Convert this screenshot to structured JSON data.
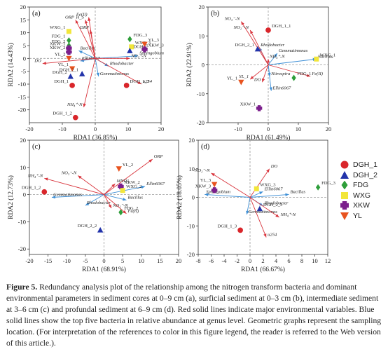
{
  "colors": {
    "env_arrow": "#d9363e",
    "species_arrow": "#3d8fd6",
    "dashed": "#9a9a9a",
    "DGH_1": "#d9262b",
    "DGH_2": "#2233aa",
    "FDG": "#2e9e3a",
    "WXG": "#f2e63a",
    "XKW": "#7b1f8c",
    "YL": "#e8531f"
  },
  "legend": [
    {
      "name": "DGH_1",
      "marker": "circle"
    },
    {
      "name": "DGH_2",
      "marker": "triangle-up"
    },
    {
      "name": "FDG",
      "marker": "diamond"
    },
    {
      "name": "WXG",
      "marker": "square"
    },
    {
      "name": "XKW",
      "marker": "plus"
    },
    {
      "name": "YL",
      "marker": "triangle-down"
    }
  ],
  "caption": {
    "figure_label": "Figure 5.",
    "text": " Redundancy analysis plot of the relationship among the nitrogen transform bacteria and dominant environmental parameters in sediment cores at 0–9 cm (a), surficial sediment at 0–3 cm (b), intermediate sediment at 3–6 cm (c) and profundal sediment at 6–9 cm (d). Red solid lines indicate major environmental variables. Blue solid lines show the top five bacteria in relative abundance at genus level. Geometric graphs represent the sampling location. (For interpretation of the references to color in this figure legend, the reader is referred to the Web version of this article.)."
  },
  "chart_data": [
    {
      "panel": "(a)",
      "type": "scatter",
      "xlabel": "RDA1 (36.85%)",
      "ylabel": "RDA2 (14.43%)",
      "xlim": [
        -20,
        20
      ],
      "ylim": [
        -25,
        20
      ],
      "xticks": [
        -20,
        -10,
        0,
        10,
        20
      ],
      "yticks": [
        -20,
        -15,
        -10,
        -5,
        0,
        5,
        10,
        15,
        20
      ],
      "env_vectors": [
        {
          "label": "ORP",
          "x": -6,
          "y": 15
        },
        {
          "label": "H_S",
          "x": -3,
          "y": 15
        },
        {
          "label": "Fe(II)",
          "x": -2,
          "y": 16
        },
        {
          "label": "DRP",
          "x": -1.5,
          "y": 11
        },
        {
          "label": "DO",
          "x": -16,
          "y": -2
        },
        {
          "label": "NO₂⁻-N",
          "x": 10.5,
          "y": 0
        },
        {
          "label": "u254",
          "x": 14,
          "y": -10
        },
        {
          "label": "NH₄⁺-N",
          "x": -3.5,
          "y": -19
        }
      ],
      "species_vectors": [
        {
          "label": "Bacillus",
          "x": -5,
          "y": 3
        },
        {
          "label": "Ellin6067",
          "x": -4.5,
          "y": -1
        },
        {
          "label": "Sphingobium",
          "x": 13,
          "y": 1
        },
        {
          "label": "Rhodobacter",
          "x": 4,
          "y": -3
        },
        {
          "label": "Gemmatimonas",
          "x": 1,
          "y": -7
        }
      ],
      "samples": [
        {
          "label": "WXG_1",
          "group": "WXG",
          "x": -8,
          "y": 10.5
        },
        {
          "label": "FDG_1",
          "group": "FDG",
          "x": -8,
          "y": 7
        },
        {
          "label": "FDG_2",
          "group": "FDG",
          "x": -8,
          "y": 5
        },
        {
          "label": "XKW_1",
          "group": "XKW",
          "x": -8,
          "y": 4
        },
        {
          "label": "XKW_2",
          "group": "XKW",
          "x": -8,
          "y": 2.5
        },
        {
          "label": "YL_1",
          "group": "YL",
          "x": -7,
          "y": -4
        },
        {
          "label": "YL_2",
          "group": "YL",
          "x": -8,
          "y": 0
        },
        {
          "label": "DGH_2",
          "group": "DGH_2",
          "x": -7.5,
          "y": -7
        },
        {
          "label": "DGH_1",
          "group": "DGH_1",
          "x": -7,
          "y": -10.5
        },
        {
          "label": "DGH_2_1",
          "group": "DGH_2",
          "x": -4,
          "y": -6
        },
        {
          "label": "FDG_3",
          "group": "FDG",
          "x": 10.5,
          "y": 7.5
        },
        {
          "label": "WXG_3",
          "group": "WXG",
          "x": 11,
          "y": 4.5
        },
        {
          "label": "DGH_2",
          "group": "DGH_2",
          "x": 10.5,
          "y": 3
        },
        {
          "label": "YL_3",
          "group": "YL",
          "x": 15,
          "y": 5.5
        },
        {
          "label": "XKW_3",
          "group": "XKW",
          "x": 15,
          "y": 3.5
        },
        {
          "label": "DGH_1_3",
          "group": "DGH_1",
          "x": 9.5,
          "y": -10.5
        },
        {
          "label": "DGH_1_2",
          "group": "DGH_1",
          "x": -6,
          "y": -23
        }
      ]
    },
    {
      "panel": "(b)",
      "type": "scatter",
      "xlabel": "RDA1 (61.49%)",
      "ylabel": "RDA2 (22.91%)",
      "xlim": [
        -20,
        20
      ],
      "ylim": [
        -20,
        20
      ],
      "xticks": [
        -10,
        0,
        10,
        20
      ],
      "yticks": [
        -20,
        -10,
        0,
        10,
        20
      ],
      "env_vectors": [
        {
          "label": "NO₃⁻-N",
          "x": -9,
          "y": 15
        },
        {
          "label": "NO₂⁻-N",
          "x": -6,
          "y": 12
        },
        {
          "label": "NH₄⁺-N",
          "x": 0,
          "y": 2
        },
        {
          "label": "YL_1",
          "x": -6,
          "y": -5
        },
        {
          "label": "DO",
          "x": -2,
          "y": -6
        },
        {
          "label": "Fe(II)",
          "x": 14,
          "y": -4
        }
      ],
      "species_vectors": [
        {
          "label": "Rhodobacter",
          "x": -3,
          "y": 6
        },
        {
          "label": "Gemmatimonas",
          "x": 3,
          "y": 4
        },
        {
          "label": "Bacillus",
          "x": 16,
          "y": 2
        },
        {
          "label": "Nitrospira",
          "x": 0.5,
          "y": -4
        },
        {
          "label": "Ellin6067",
          "x": 1,
          "y": -9
        }
      ],
      "samples": [
        {
          "label": "DGH_1_1",
          "group": "DGH_1",
          "x": 0,
          "y": 12
        },
        {
          "label": "DGH_2_1",
          "group": "DGH_2",
          "x": -3.5,
          "y": 5.5
        },
        {
          "label": "YL_1",
          "group": "YL",
          "x": -9,
          "y": -6
        },
        {
          "label": "WXG_1",
          "group": "WXG",
          "x": 16,
          "y": 2
        },
        {
          "label": "FDG_1",
          "group": "FDG",
          "x": 8.5,
          "y": -4.5
        },
        {
          "label": "XKW_1",
          "group": "XKW",
          "x": -3,
          "y": -15
        }
      ]
    },
    {
      "panel": "(c)",
      "type": "scatter",
      "xlabel": "RDA1 (68.91%)",
      "ylabel": "RDA2 (12.73%)",
      "xlim": [
        -20,
        20
      ],
      "ylim": [
        -22,
        20
      ],
      "xticks": [
        -20,
        -15,
        -10,
        -5,
        0,
        5,
        10,
        15,
        20
      ],
      "yticks": [
        -20,
        -10,
        0,
        10,
        20
      ],
      "env_vectors": [
        {
          "label": "NH₄⁺-N",
          "x": -16,
          "y": 6
        },
        {
          "label": "NO₃⁻-N",
          "x": -7,
          "y": 7
        },
        {
          "label": "ORP",
          "x": 13,
          "y": 13
        },
        {
          "label": "MND1",
          "x": 3,
          "y": 4
        },
        {
          "label": "NO₂⁻-N",
          "x": 2,
          "y": -5
        },
        {
          "label": "Fe(II)",
          "x": 6,
          "y": -7
        }
      ],
      "species_vectors": [
        {
          "label": "Gemmatimonas",
          "x": -14,
          "y": -1
        },
        {
          "label": "Ellin6067",
          "x": 11,
          "y": 3
        },
        {
          "label": "Rhodobacter",
          "x": -5,
          "y": -4
        },
        {
          "label": "Bacillus",
          "x": 6,
          "y": -2
        }
      ],
      "samples": [
        {
          "label": "DGH_1_2",
          "group": "DGH_1",
          "x": -16,
          "y": 1
        },
        {
          "label": "YL_2",
          "group": "YL",
          "x": 4,
          "y": 9.5
        },
        {
          "label": "XKW_2",
          "group": "XKW",
          "x": 4.5,
          "y": 3
        },
        {
          "label": "WXG_2",
          "group": "WXG",
          "x": 5,
          "y": 1.5
        },
        {
          "label": "FDG_2",
          "group": "FDG",
          "x": 4.5,
          "y": -6.5
        },
        {
          "label": "DGH_2_2",
          "group": "DGH_2",
          "x": -1,
          "y": -13
        }
      ]
    },
    {
      "panel": "(d)",
      "type": "scatter",
      "xlabel": "RDA1 (66.67%)",
      "ylabel": "RDA2 (18.05%)",
      "xlim": [
        -8,
        12
      ],
      "ylim": [
        -20,
        20
      ],
      "xticks": [
        -8,
        -6,
        -4,
        -2,
        0,
        2,
        4,
        6,
        8,
        10,
        12
      ],
      "yticks": [
        -20,
        -10,
        0,
        10,
        20
      ],
      "env_vectors": [
        {
          "label": "NO₂⁻-N",
          "x": -6,
          "y": 8.5
        },
        {
          "label": "DO",
          "x": 3,
          "y": 10
        },
        {
          "label": "NH₄⁺-N",
          "x": 4.5,
          "y": -7
        },
        {
          "label": "u254",
          "x": 2.5,
          "y": -14
        }
      ],
      "species_vectors": [
        {
          "label": "Sphingobium",
          "x": -7,
          "y": 1
        },
        {
          "label": "Bacillus",
          "x": 6,
          "y": 1
        },
        {
          "label": "Ellin6067",
          "x": 2,
          "y": 2
        },
        {
          "label": "Rhodobacter",
          "x": 2,
          "y": -3
        },
        {
          "label": "Gemmatimonas",
          "x": -0.5,
          "y": -6
        }
      ],
      "samples": [
        {
          "label": "YL_3",
          "group": "YL",
          "x": -5.5,
          "y": 4.5
        },
        {
          "label": "XKW_3",
          "group": "XKW",
          "x": -5.5,
          "y": 2.5
        },
        {
          "label": "WXG_3",
          "group": "WXG",
          "x": 1,
          "y": 3
        },
        {
          "label": "FDG_3",
          "group": "FDG",
          "x": 10.5,
          "y": 3.5
        },
        {
          "label": "DGH_2_3",
          "group": "DGH_2",
          "x": 1.5,
          "y": -4
        },
        {
          "label": "DGH_1_3",
          "group": "DGH_1",
          "x": -1.5,
          "y": -11.5
        }
      ]
    }
  ]
}
